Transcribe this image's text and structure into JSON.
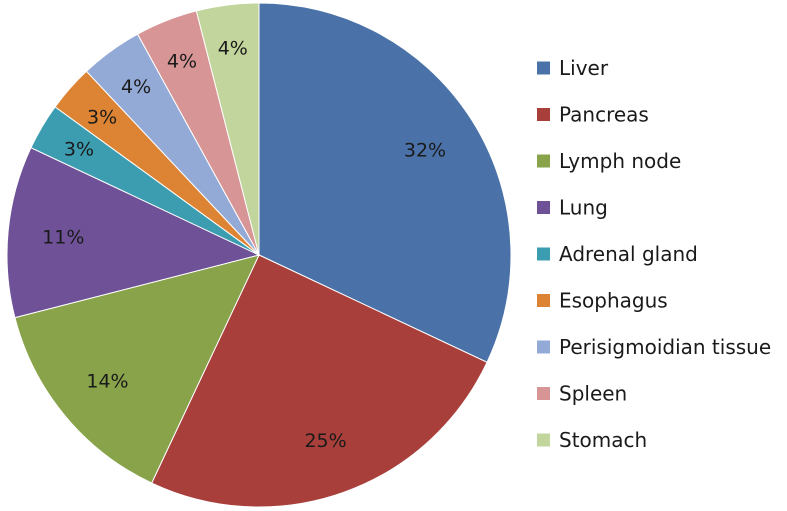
{
  "chart_data": {
    "type": "pie",
    "title": "",
    "categories": [
      "Liver",
      "Pancreas",
      "Lymph node",
      "Lung",
      "Adrenal gland",
      "Esophagus",
      "Perisigmoidian tissue",
      "Spleen",
      "Stomach"
    ],
    "values": [
      32,
      25,
      14,
      11,
      3,
      3,
      4,
      4,
      4
    ],
    "labels": [
      "32%",
      "25%",
      "14%",
      "11%",
      "3%",
      "3%",
      "4%",
      "4%",
      "4%"
    ],
    "colors": [
      "#4a72a8",
      "#a83f3b",
      "#88a34a",
      "#6e5196",
      "#3d9db0",
      "#dd8434",
      "#94aad6",
      "#d89595",
      "#c2d59c"
    ],
    "legend_position": "right",
    "start_angle": "12 o'clock",
    "direction": "clockwise"
  }
}
